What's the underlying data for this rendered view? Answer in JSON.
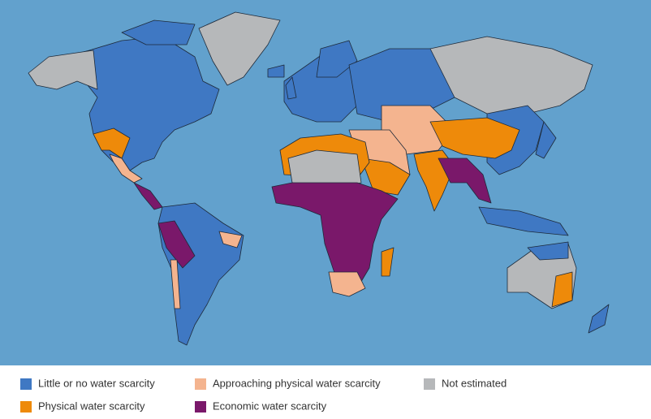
{
  "legend": {
    "items": [
      {
        "label": "Little or no water scarcity",
        "color": "#3f78c3"
      },
      {
        "label": "Approaching physical water scarcity",
        "color": "#f4b48f"
      },
      {
        "label": "Not estimated",
        "color": "#b6b8ba"
      },
      {
        "label": "Physical water scarcity",
        "color": "#ee8a0a"
      },
      {
        "label": "Economic water scarcity",
        "color": "#7a186a"
      }
    ]
  }
}
